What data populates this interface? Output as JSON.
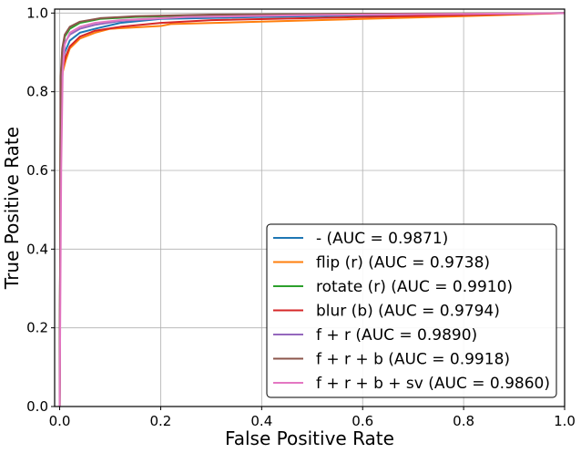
{
  "chart_data": {
    "type": "line",
    "title": "",
    "xlabel": "False Positive Rate",
    "ylabel": "True Positive Rate",
    "xlim": [
      -0.01,
      1.0
    ],
    "ylim": [
      0.0,
      1.01
    ],
    "xticks": [
      "0.0",
      "0.2",
      "0.4",
      "0.6",
      "0.8",
      "1.0"
    ],
    "yticks": [
      "0.0",
      "0.2",
      "0.4",
      "0.6",
      "0.8",
      "1.0"
    ],
    "grid": true,
    "legend_position": "bottom-right",
    "series": [
      {
        "name": "- (AUC = 0.9871)",
        "color": "#1f77b4",
        "points": [
          [
            0,
            0
          ],
          [
            0.002,
            0.8
          ],
          [
            0.005,
            0.87
          ],
          [
            0.01,
            0.9
          ],
          [
            0.02,
            0.93
          ],
          [
            0.04,
            0.95
          ],
          [
            0.07,
            0.96
          ],
          [
            0.12,
            0.975
          ],
          [
            0.2,
            0.985
          ],
          [
            0.4,
            0.99
          ],
          [
            0.7,
            0.996
          ],
          [
            1.0,
            1.0
          ]
        ]
      },
      {
        "name": "flip (r) (AUC = 0.9738)",
        "color": "#ff7f0e",
        "points": [
          [
            0,
            0
          ],
          [
            0.002,
            0.78
          ],
          [
            0.006,
            0.85
          ],
          [
            0.012,
            0.88
          ],
          [
            0.02,
            0.91
          ],
          [
            0.04,
            0.935
          ],
          [
            0.07,
            0.95
          ],
          [
            0.1,
            0.96
          ],
          [
            0.2,
            0.967
          ],
          [
            0.22,
            0.972
          ],
          [
            0.4,
            0.978
          ],
          [
            0.6,
            0.985
          ],
          [
            0.8,
            0.992
          ],
          [
            1.0,
            1.0
          ]
        ]
      },
      {
        "name": "rotate (r) (AUC = 0.9910)",
        "color": "#2ca02c",
        "points": [
          [
            0,
            0
          ],
          [
            0.002,
            0.83
          ],
          [
            0.005,
            0.9
          ],
          [
            0.01,
            0.94
          ],
          [
            0.02,
            0.96
          ],
          [
            0.04,
            0.975
          ],
          [
            0.08,
            0.985
          ],
          [
            0.15,
            0.99
          ],
          [
            0.3,
            0.995
          ],
          [
            0.6,
            0.998
          ],
          [
            1.0,
            1.0
          ]
        ]
      },
      {
        "name": "blur (b) (AUC = 0.9794)",
        "color": "#d62728",
        "points": [
          [
            0,
            0
          ],
          [
            0.002,
            0.8
          ],
          [
            0.006,
            0.86
          ],
          [
            0.012,
            0.89
          ],
          [
            0.02,
            0.915
          ],
          [
            0.04,
            0.94
          ],
          [
            0.07,
            0.955
          ],
          [
            0.12,
            0.965
          ],
          [
            0.2,
            0.975
          ],
          [
            0.3,
            0.982
          ],
          [
            0.6,
            0.99
          ],
          [
            1.0,
            1.0
          ]
        ]
      },
      {
        "name": "f + r (AUC = 0.9890)",
        "color": "#9467bd",
        "points": [
          [
            0,
            0
          ],
          [
            0.002,
            0.82
          ],
          [
            0.005,
            0.89
          ],
          [
            0.01,
            0.925
          ],
          [
            0.02,
            0.945
          ],
          [
            0.04,
            0.96
          ],
          [
            0.07,
            0.97
          ],
          [
            0.12,
            0.98
          ],
          [
            0.25,
            0.99
          ],
          [
            0.5,
            0.995
          ],
          [
            1.0,
            1.0
          ]
        ]
      },
      {
        "name": "f + r + b (AUC = 0.9918)",
        "color": "#8c564b",
        "points": [
          [
            0,
            0
          ],
          [
            0.002,
            0.84
          ],
          [
            0.005,
            0.91
          ],
          [
            0.01,
            0.945
          ],
          [
            0.02,
            0.965
          ],
          [
            0.04,
            0.978
          ],
          [
            0.08,
            0.987
          ],
          [
            0.15,
            0.992
          ],
          [
            0.3,
            0.996
          ],
          [
            0.6,
            0.998
          ],
          [
            1.0,
            1.0
          ]
        ]
      },
      {
        "name": "f + r + b + sv (AUC = 0.9860)",
        "color": "#e377c2",
        "points": [
          [
            0,
            0
          ],
          [
            0.003,
            0.6
          ],
          [
            0.006,
            0.85
          ],
          [
            0.01,
            0.92
          ],
          [
            0.02,
            0.95
          ],
          [
            0.04,
            0.965
          ],
          [
            0.07,
            0.975
          ],
          [
            0.12,
            0.982
          ],
          [
            0.25,
            0.99
          ],
          [
            0.5,
            0.995
          ],
          [
            1.0,
            1.0
          ]
        ]
      }
    ]
  }
}
